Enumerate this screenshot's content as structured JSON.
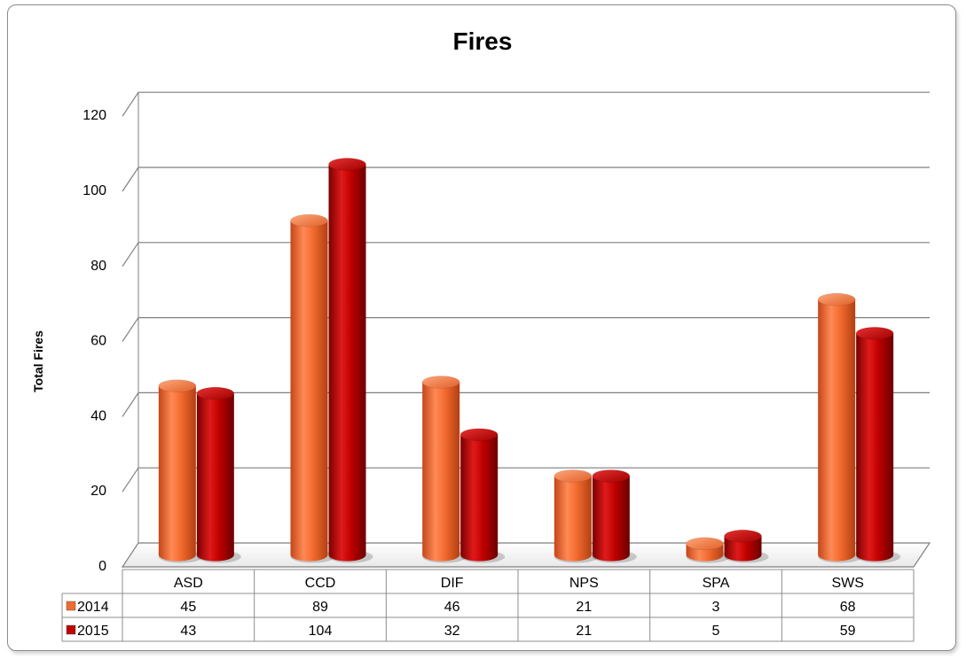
{
  "chart_data": {
    "type": "bar",
    "title": "Fires",
    "ylabel": "Total Fires",
    "xlabel": "",
    "ylim": [
      0,
      120
    ],
    "yticks": [
      0,
      20,
      40,
      60,
      80,
      100,
      120
    ],
    "categories": [
      "ASD",
      "CCD",
      "DIF",
      "NPS",
      "SPA",
      "SWS"
    ],
    "series": [
      {
        "name": "2014",
        "values": [
          45,
          89,
          46,
          21,
          3,
          68
        ],
        "color": "#f26b2f"
      },
      {
        "name": "2015",
        "values": [
          43,
          104,
          32,
          21,
          5,
          59
        ],
        "color": "#c00000"
      }
    ],
    "grid": true,
    "style": "3d-cylinder",
    "legend": "data-table-left"
  }
}
